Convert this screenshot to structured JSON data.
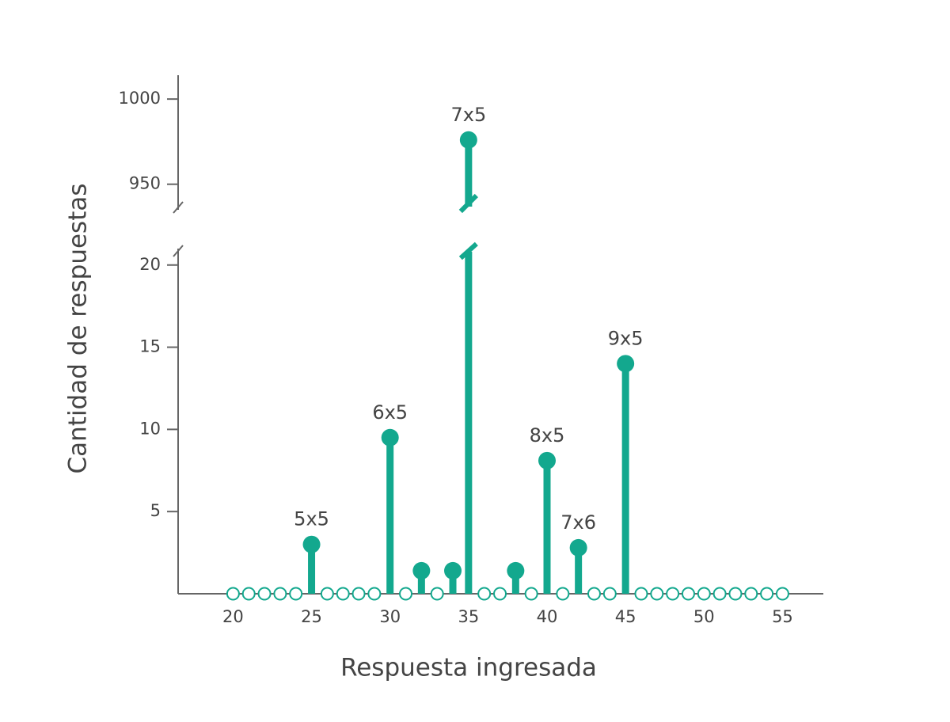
{
  "chart_data": {
    "type": "lollipop",
    "x_label": "Respuesta ingresada",
    "y_label": "Cantidad de respuestas",
    "color": "#13a88e",
    "x": [
      20,
      21,
      22,
      23,
      24,
      25,
      26,
      27,
      28,
      29,
      30,
      31,
      32,
      33,
      34,
      35,
      36,
      37,
      38,
      39,
      40,
      41,
      42,
      43,
      44,
      45,
      46,
      47,
      48,
      49,
      50,
      51,
      52,
      53,
      54,
      55
    ],
    "values": [
      0,
      0,
      0,
      0,
      0,
      3,
      0,
      0,
      0,
      0,
      9.5,
      0,
      1.4,
      0,
      1.4,
      976,
      0,
      0,
      1.4,
      0,
      8.1,
      0,
      2.8,
      0,
      0,
      14,
      0,
      0,
      0,
      0,
      0,
      0,
      0,
      0,
      0,
      0
    ],
    "annotations": [
      {
        "x": 25,
        "text": "5x5"
      },
      {
        "x": 30,
        "text": "6x5"
      },
      {
        "x": 35,
        "text": "7x5"
      },
      {
        "x": 40,
        "text": "8x5"
      },
      {
        "x": 42,
        "text": "7x6"
      },
      {
        "x": 45,
        "text": "9x5"
      }
    ],
    "xlim": [
      16.5,
      57.6
    ],
    "xticks": [
      20,
      25,
      30,
      35,
      40,
      45,
      50,
      55
    ],
    "y_segments": [
      {
        "ylim": [
          0,
          21
        ],
        "yticks": [
          5,
          10,
          15,
          20
        ]
      },
      {
        "ylim": [
          935,
          1014
        ],
        "yticks": [
          950,
          1000
        ]
      }
    ]
  }
}
